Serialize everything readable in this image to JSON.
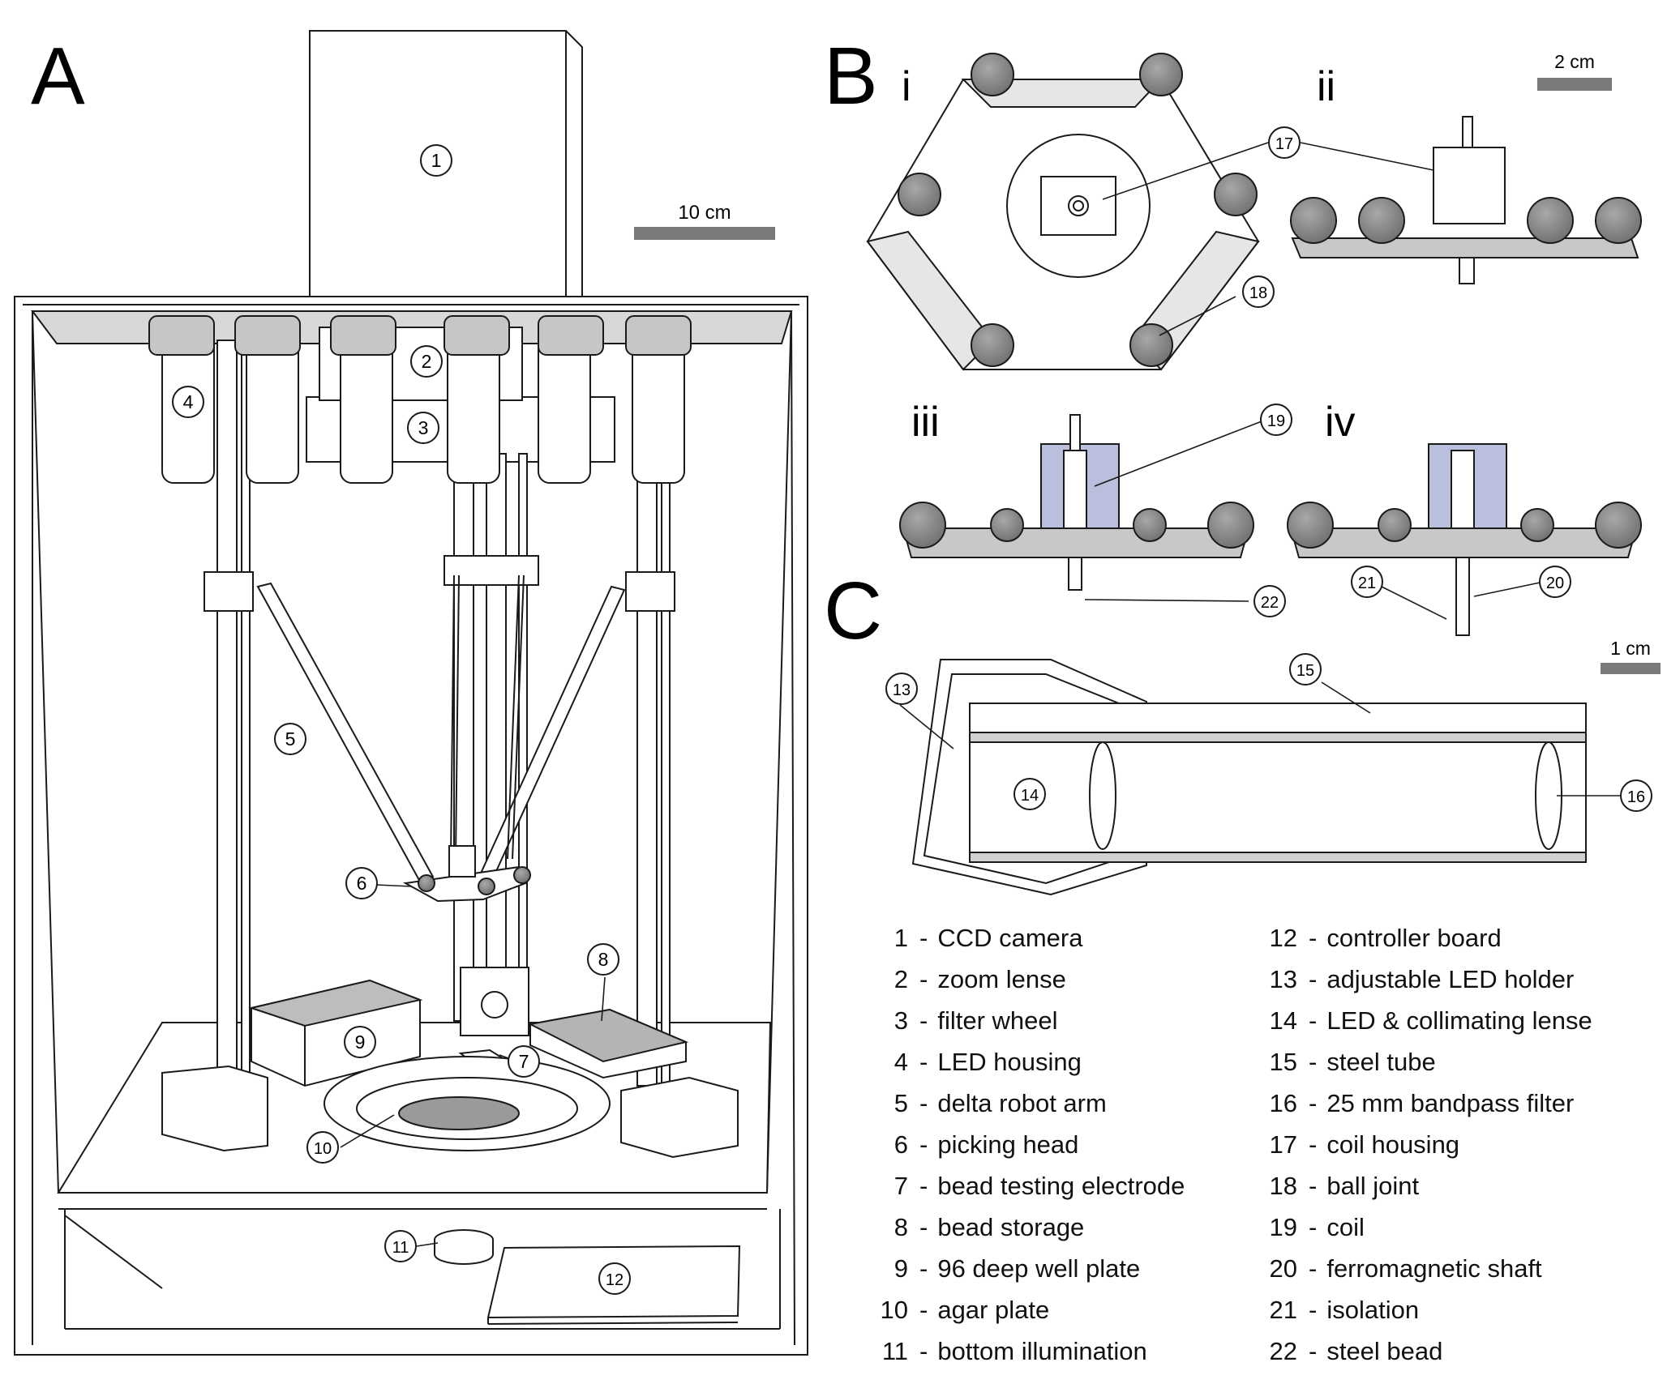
{
  "panels": {
    "A": "A",
    "B": "B",
    "C": "C",
    "Bi": "i",
    "Bii": "ii",
    "Biii": "iii",
    "Biv": "iv"
  },
  "scale_bars": {
    "A": "10 cm",
    "B": "2 cm",
    "C": "1 cm"
  },
  "callouts": [
    "1",
    "2",
    "3",
    "4",
    "5",
    "6",
    "7",
    "8",
    "9",
    "10",
    "11",
    "12",
    "13",
    "14",
    "15",
    "16",
    "17",
    "18",
    "19",
    "20",
    "21",
    "22"
  ],
  "legend": [
    {
      "num": "1",
      "text": "CCD camera"
    },
    {
      "num": "2",
      "text": "zoom lense"
    },
    {
      "num": "3",
      "text": "filter wheel"
    },
    {
      "num": "4",
      "text": "LED housing"
    },
    {
      "num": "5",
      "text": "delta robot arm"
    },
    {
      "num": "6",
      "text": "picking head"
    },
    {
      "num": "7",
      "text": "bead testing electrode"
    },
    {
      "num": "8",
      "text": "bead storage"
    },
    {
      "num": "9",
      "text": "96 deep well plate"
    },
    {
      "num": "10",
      "text": "agar plate"
    },
    {
      "num": "11",
      "text": "bottom illumination"
    },
    {
      "num": "12",
      "text": "controller board"
    },
    {
      "num": "13",
      "text": "adjustable LED holder"
    },
    {
      "num": "14",
      "text": "LED & collimating lense"
    },
    {
      "num": "15",
      "text": "steel tube"
    },
    {
      "num": "16",
      "text": "25 mm bandpass filter"
    },
    {
      "num": "17",
      "text": "coil housing"
    },
    {
      "num": "18",
      "text": "ball joint"
    },
    {
      "num": "19",
      "text": "coil"
    },
    {
      "num": "20",
      "text": "ferromagnetic shaft"
    },
    {
      "num": "21",
      "text": "isolation"
    },
    {
      "num": "22",
      "text": "steel bead"
    }
  ],
  "colors": {
    "line": "#1a1a1a",
    "ball": "#7f7f7f",
    "scale_bar": "#7a7a7a",
    "coil_housing": "#b9bfdc",
    "plate_grey": "#c8c8c8"
  }
}
